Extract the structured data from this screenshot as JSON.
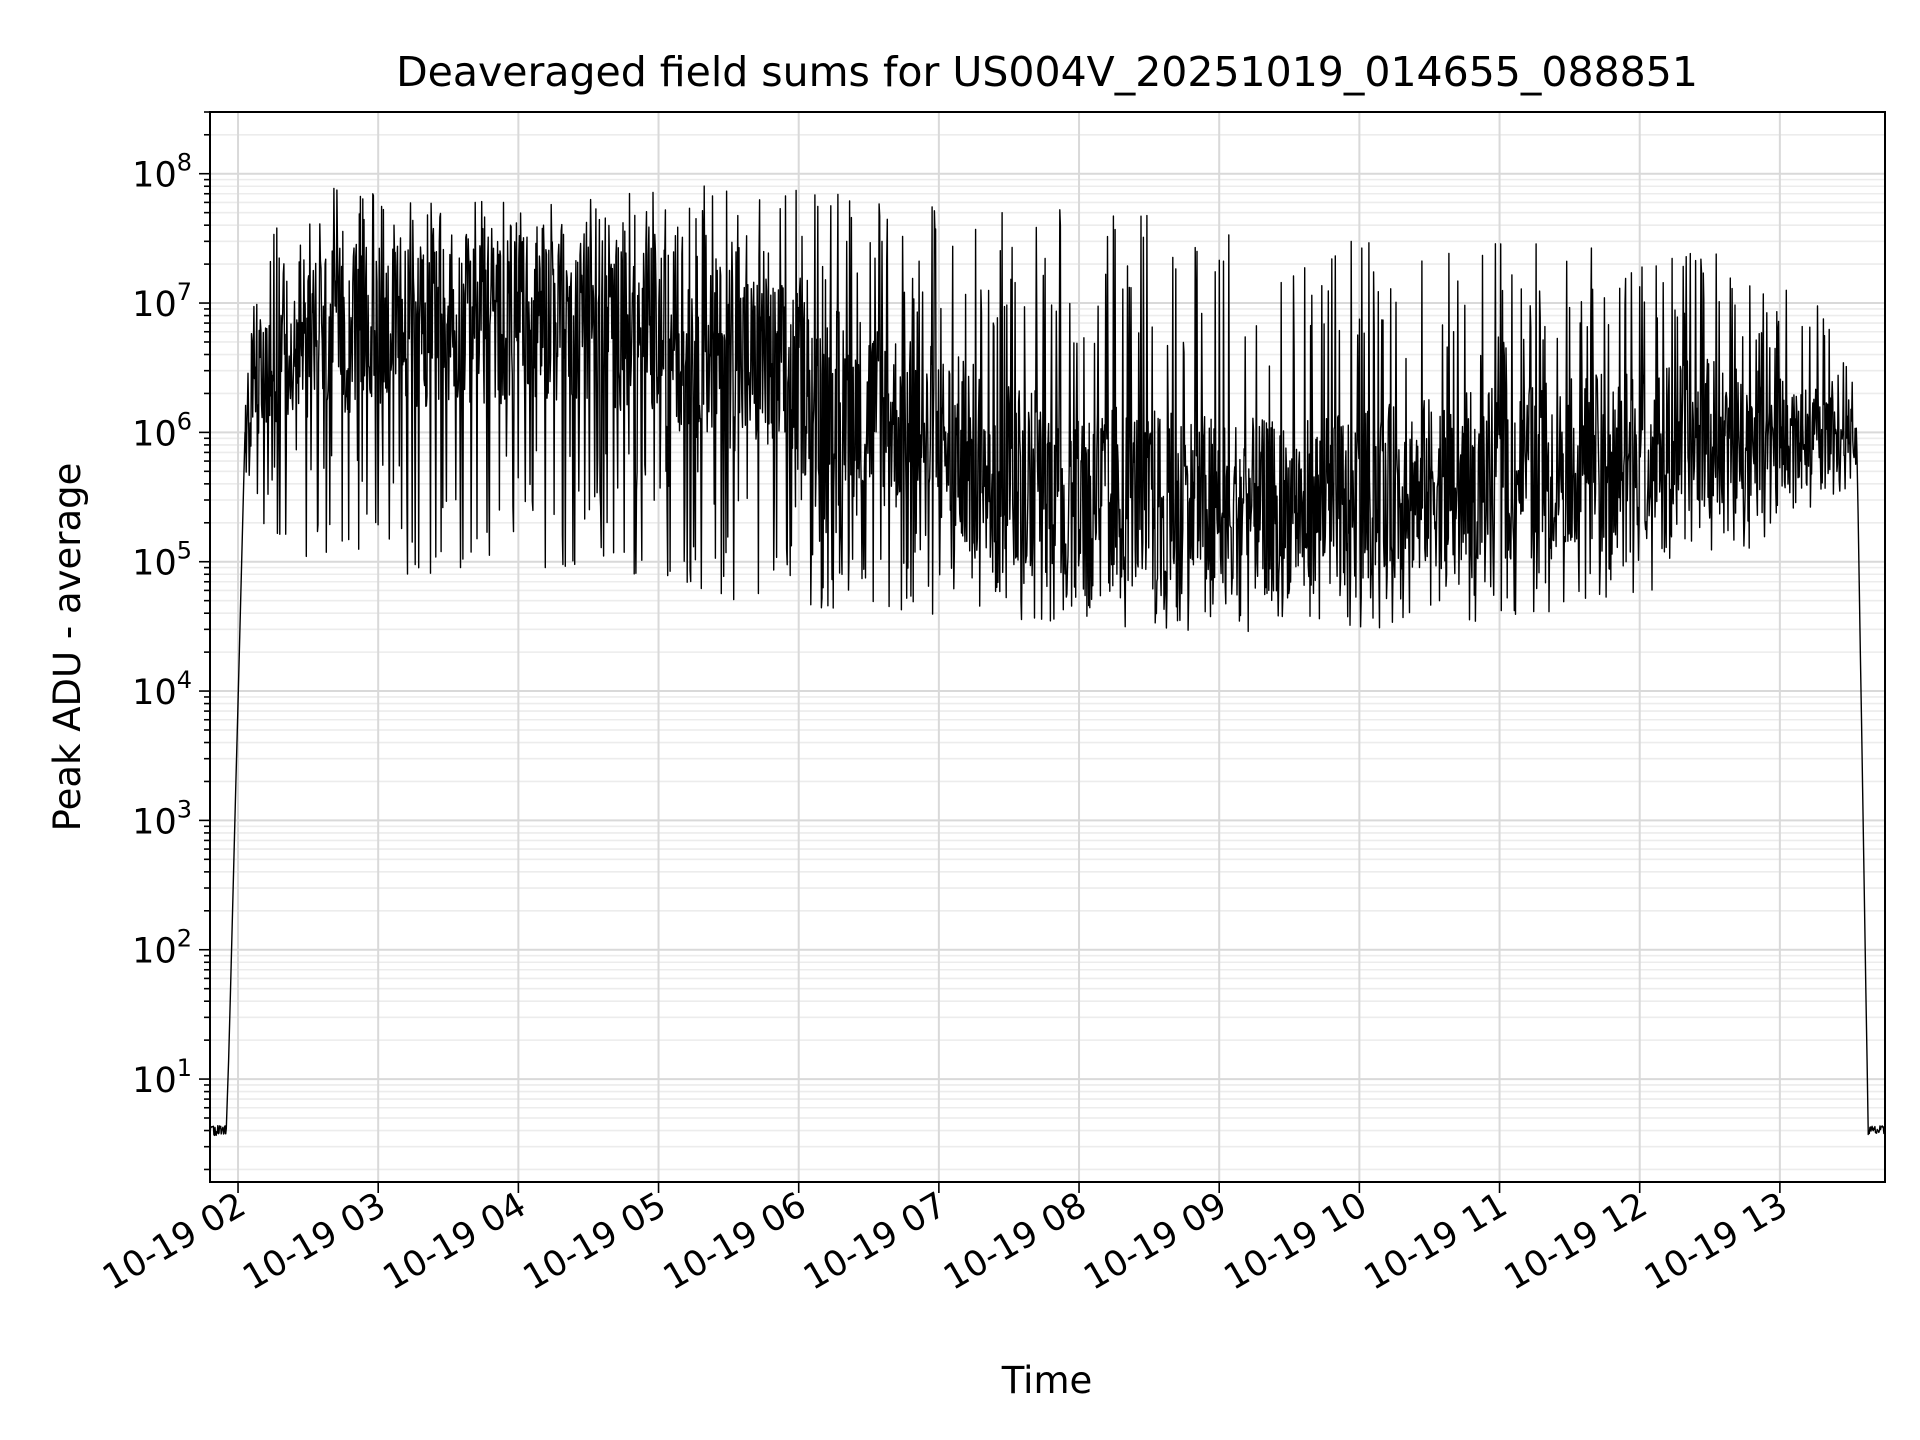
{
  "chart_data": {
    "type": "line",
    "title": "Deaveraged field sums for US004V_20251019_014655_088851",
    "xlabel": "Time",
    "ylabel": "Peak ADU - average",
    "yscale": "log",
    "ylim": [
      1.6,
      300000000
    ],
    "y_ticks": [
      {
        "value": 10,
        "base": "10",
        "exp": "1"
      },
      {
        "value": 100,
        "base": "10",
        "exp": "2"
      },
      {
        "value": 1000,
        "base": "10",
        "exp": "3"
      },
      {
        "value": 10000,
        "base": "10",
        "exp": "4"
      },
      {
        "value": 100000,
        "base": "10",
        "exp": "5"
      },
      {
        "value": 1000000,
        "base": "10",
        "exp": "6"
      },
      {
        "value": 10000000,
        "base": "10",
        "exp": "7"
      },
      {
        "value": 100000000,
        "base": "10",
        "exp": "8"
      }
    ],
    "xlim_hours": [
      1.8,
      13.75
    ],
    "x_ticks": [
      {
        "hour": 2,
        "label": "10-19 02"
      },
      {
        "hour": 3,
        "label": "10-19 03"
      },
      {
        "hour": 4,
        "label": "10-19 04"
      },
      {
        "hour": 5,
        "label": "10-19 05"
      },
      {
        "hour": 6,
        "label": "10-19 06"
      },
      {
        "hour": 7,
        "label": "10-19 07"
      },
      {
        "hour": 8,
        "label": "10-19 08"
      },
      {
        "hour": 9,
        "label": "10-19 09"
      },
      {
        "hour": 10,
        "label": "10-19 10"
      },
      {
        "hour": 11,
        "label": "10-19 11"
      },
      {
        "hour": 12,
        "label": "10-19 12"
      },
      {
        "hour": 13,
        "label": "10-19 13"
      }
    ],
    "grid": true,
    "series": [
      {
        "name": "peak_adu_minus_average",
        "color": "#000000",
        "flat_start_end_hours": [
          1.8,
          1.92
        ],
        "flat_value": 4,
        "rise_end_hour": 2.05,
        "fall_start_hour": 13.55,
        "flat_end_start_hour": 13.63,
        "envelope": [
          {
            "hour": 2.05,
            "low": 500000,
            "mid": 1000000,
            "high": 5000000
          },
          {
            "hour": 2.2,
            "low": 150000,
            "mid": 4000000,
            "high": 40000000
          },
          {
            "hour": 2.6,
            "low": 90000,
            "mid": 6000000,
            "high": 80000000
          },
          {
            "hour": 3.5,
            "low": 70000,
            "mid": 7000000,
            "high": 60000000
          },
          {
            "hour": 4.5,
            "low": 90000,
            "mid": 8000000,
            "high": 70000000
          },
          {
            "hour": 5.5,
            "low": 50000,
            "mid": 4000000,
            "high": 90000000
          },
          {
            "hour": 6.5,
            "low": 40000,
            "mid": 1500000,
            "high": 70000000
          },
          {
            "hour": 7.5,
            "low": 35000,
            "mid": 500000,
            "high": 60000000
          },
          {
            "hour": 8.5,
            "low": 30000,
            "mid": 300000,
            "high": 50000000
          },
          {
            "hour": 9.5,
            "low": 28000,
            "mid": 250000,
            "high": 30000000
          },
          {
            "hour": 10.5,
            "low": 30000,
            "mid": 400000,
            "high": 30000000
          },
          {
            "hour": 11.5,
            "low": 40000,
            "mid": 600000,
            "high": 30000000
          },
          {
            "hour": 12.5,
            "low": 80000,
            "mid": 1000000,
            "high": 30000000
          },
          {
            "hour": 13.3,
            "low": 300000,
            "mid": 1000000,
            "high": 10000000
          },
          {
            "hour": 13.55,
            "low": 400000,
            "mid": 800000,
            "high": 2000000
          }
        ]
      }
    ]
  }
}
